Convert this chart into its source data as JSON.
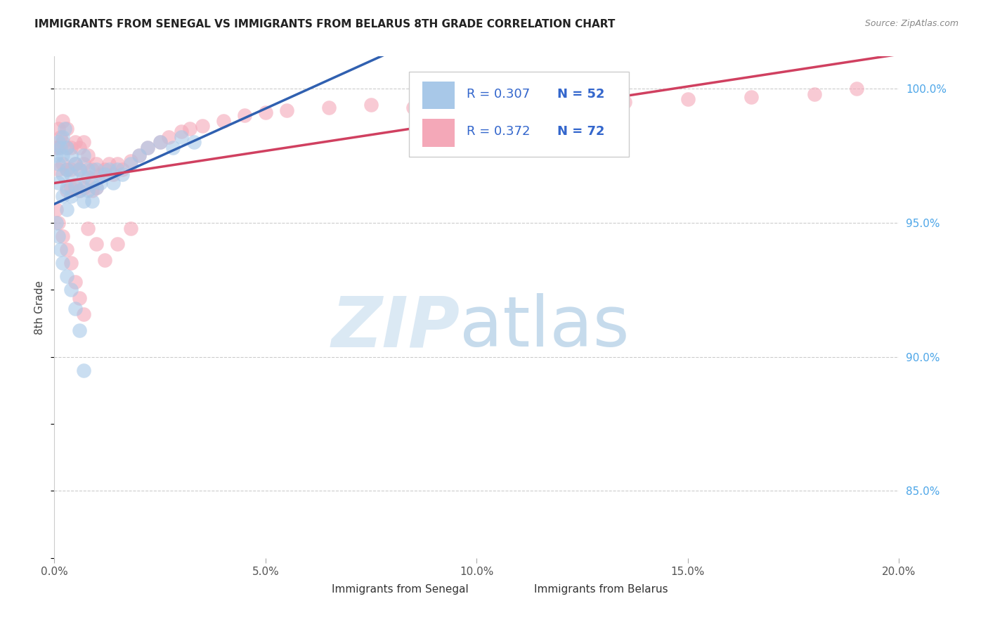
{
  "title": "IMMIGRANTS FROM SENEGAL VS IMMIGRANTS FROM BELARUS 8TH GRADE CORRELATION CHART",
  "source": "Source: ZipAtlas.com",
  "ylabel": "8th Grade",
  "ytick_labels": [
    "85.0%",
    "90.0%",
    "95.0%",
    "100.0%"
  ],
  "ytick_values": [
    0.85,
    0.9,
    0.95,
    1.0
  ],
  "senegal_color": "#a8c8e8",
  "belarus_color": "#f4a8b8",
  "senegal_line_color": "#3060b0",
  "belarus_line_color": "#d04060",
  "senegal_label": "Immigrants from Senegal",
  "belarus_label": "Immigrants from Belarus",
  "legend_R_color": "#3366cc",
  "legend_N_color": "#3366cc",
  "senegal_R": 0.307,
  "senegal_N": 52,
  "belarus_R": 0.372,
  "belarus_N": 72,
  "xlim": [
    0.0,
    0.2
  ],
  "ylim": [
    0.825,
    1.012
  ],
  "xtick_values": [
    0.0,
    0.05,
    0.1,
    0.15,
    0.2
  ],
  "xtick_labels": [
    "0.0%",
    "5.0%",
    "10.0%",
    "15.0%",
    "20.0%"
  ],
  "senegal_x": [
    0.0005,
    0.001,
    0.001,
    0.001,
    0.0015,
    0.002,
    0.002,
    0.002,
    0.002,
    0.0025,
    0.003,
    0.003,
    0.003,
    0.003,
    0.004,
    0.004,
    0.004,
    0.005,
    0.005,
    0.006,
    0.006,
    0.007,
    0.007,
    0.007,
    0.008,
    0.008,
    0.009,
    0.009,
    0.01,
    0.01,
    0.011,
    0.012,
    0.013,
    0.014,
    0.015,
    0.016,
    0.018,
    0.02,
    0.022,
    0.025,
    0.028,
    0.03,
    0.033,
    0.0005,
    0.001,
    0.0015,
    0.002,
    0.003,
    0.004,
    0.005,
    0.006,
    0.007
  ],
  "senegal_y": [
    0.975,
    0.98,
    0.972,
    0.965,
    0.978,
    0.982,
    0.975,
    0.968,
    0.96,
    0.985,
    0.978,
    0.97,
    0.963,
    0.955,
    0.975,
    0.968,
    0.96,
    0.972,
    0.964,
    0.97,
    0.962,
    0.975,
    0.967,
    0.958,
    0.97,
    0.962,
    0.965,
    0.958,
    0.97,
    0.963,
    0.965,
    0.968,
    0.97,
    0.965,
    0.97,
    0.968,
    0.972,
    0.975,
    0.978,
    0.98,
    0.978,
    0.982,
    0.98,
    0.95,
    0.945,
    0.94,
    0.935,
    0.93,
    0.925,
    0.918,
    0.91,
    0.895
  ],
  "belarus_x": [
    0.0005,
    0.001,
    0.001,
    0.001,
    0.0015,
    0.002,
    0.002,
    0.002,
    0.003,
    0.003,
    0.003,
    0.003,
    0.004,
    0.004,
    0.004,
    0.005,
    0.005,
    0.005,
    0.006,
    0.006,
    0.006,
    0.007,
    0.007,
    0.007,
    0.008,
    0.008,
    0.009,
    0.009,
    0.01,
    0.01,
    0.011,
    0.012,
    0.013,
    0.014,
    0.015,
    0.016,
    0.018,
    0.02,
    0.022,
    0.025,
    0.027,
    0.03,
    0.032,
    0.035,
    0.04,
    0.045,
    0.05,
    0.055,
    0.065,
    0.075,
    0.085,
    0.095,
    0.105,
    0.12,
    0.135,
    0.15,
    0.165,
    0.18,
    0.19,
    0.0005,
    0.001,
    0.002,
    0.003,
    0.004,
    0.005,
    0.006,
    0.007,
    0.008,
    0.01,
    0.012,
    0.015,
    0.018
  ],
  "belarus_y": [
    0.978,
    0.985,
    0.978,
    0.97,
    0.982,
    0.988,
    0.98,
    0.972,
    0.985,
    0.978,
    0.97,
    0.962,
    0.978,
    0.97,
    0.963,
    0.98,
    0.972,
    0.963,
    0.978,
    0.97,
    0.962,
    0.98,
    0.972,
    0.963,
    0.975,
    0.967,
    0.97,
    0.962,
    0.972,
    0.963,
    0.968,
    0.97,
    0.972,
    0.968,
    0.972,
    0.97,
    0.973,
    0.975,
    0.978,
    0.98,
    0.982,
    0.984,
    0.985,
    0.986,
    0.988,
    0.99,
    0.991,
    0.992,
    0.993,
    0.994,
    0.993,
    0.992,
    0.993,
    0.994,
    0.995,
    0.996,
    0.997,
    0.998,
    1.0,
    0.955,
    0.95,
    0.945,
    0.94,
    0.935,
    0.928,
    0.922,
    0.916,
    0.948,
    0.942,
    0.936,
    0.942,
    0.948
  ]
}
